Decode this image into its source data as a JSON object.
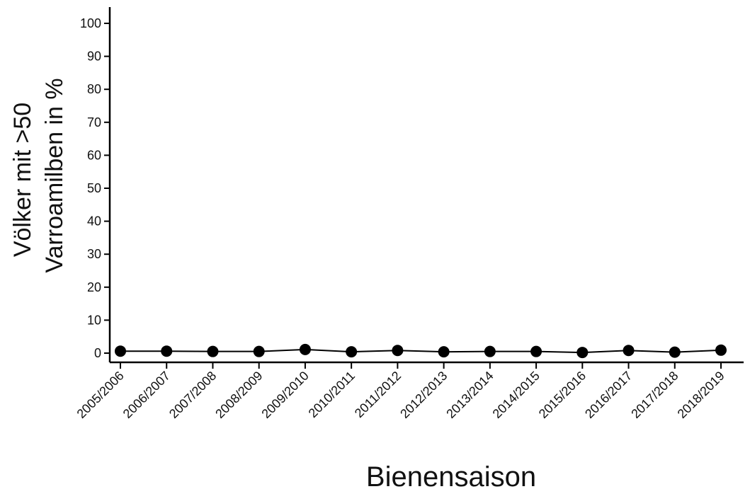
{
  "chart_data": {
    "type": "line",
    "xlabel": "Bienensaison",
    "ylabel_lines": [
      "Völker mit >50",
      "Varroamilben in %"
    ],
    "categories": [
      "2005/2006",
      "2006/2007",
      "2007/2008",
      "2008/2009",
      "2009/2010",
      "2010/2011",
      "2011/2012",
      "2012/2013",
      "2013/2014",
      "2014/2015",
      "2015/2016",
      "2016/2017",
      "2017/2018",
      "2018/2019"
    ],
    "series": [
      {
        "values": [
          0.6,
          0.6,
          0.5,
          0.5,
          1.1,
          0.4,
          0.8,
          0.4,
          0.5,
          0.5,
          0.2,
          0.8,
          0.3,
          0.9
        ]
      }
    ],
    "ylim": [
      0,
      100
    ],
    "yticks": [
      0,
      10,
      20,
      30,
      40,
      50,
      60,
      70,
      80,
      90,
      100
    ],
    "grid": false,
    "colors": {
      "line": "#000000",
      "marker": "#000000",
      "axis": "#000000"
    }
  }
}
